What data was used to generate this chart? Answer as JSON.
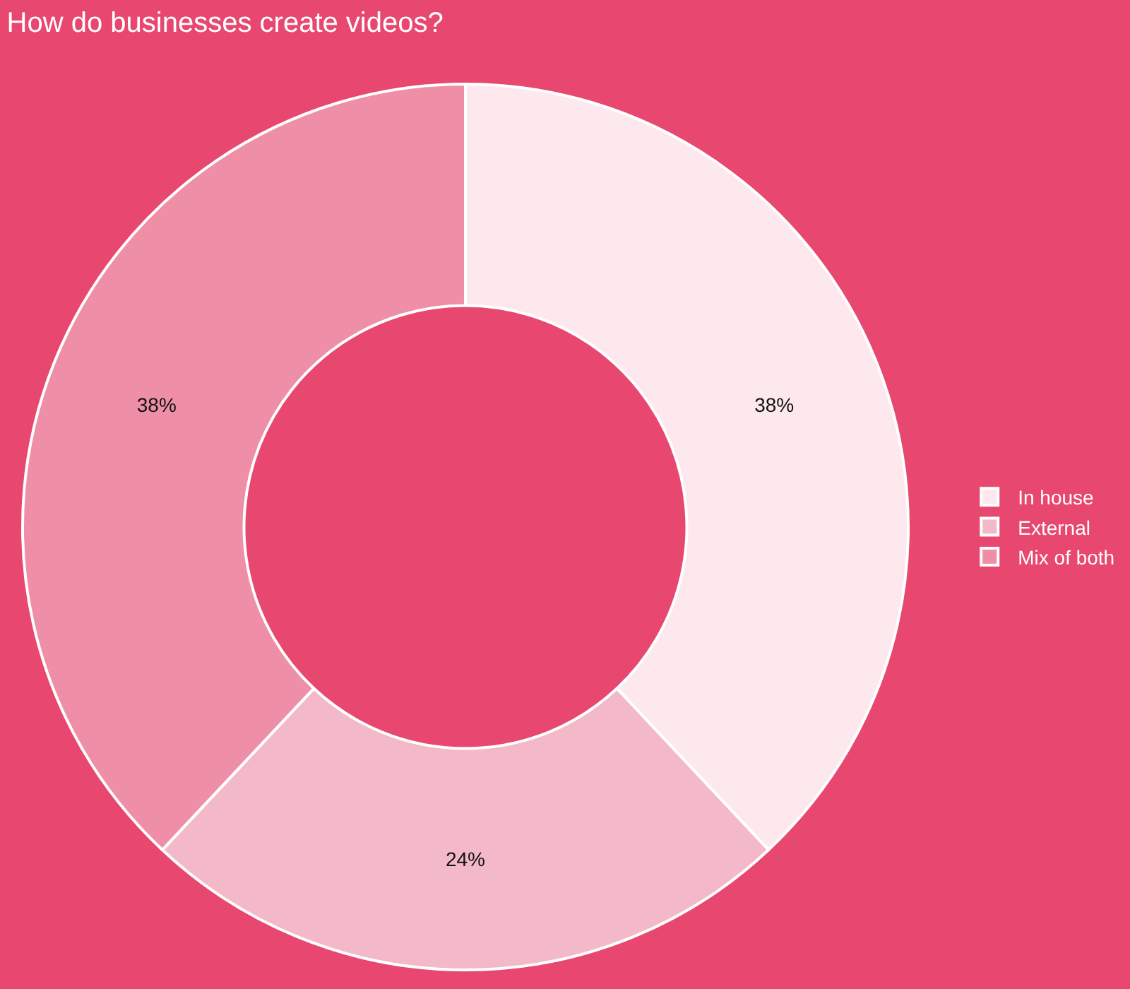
{
  "chart_data": {
    "type": "donut",
    "title": "How do businesses create videos?",
    "categories": [
      "In house",
      "External",
      "Mix of both"
    ],
    "values": [
      38,
      24,
      38
    ],
    "value_labels": [
      "38%",
      "24%",
      "38%"
    ],
    "colors": [
      "#fde8ed",
      "#f4b9c9",
      "#ef8ea7"
    ],
    "legend": "right"
  }
}
